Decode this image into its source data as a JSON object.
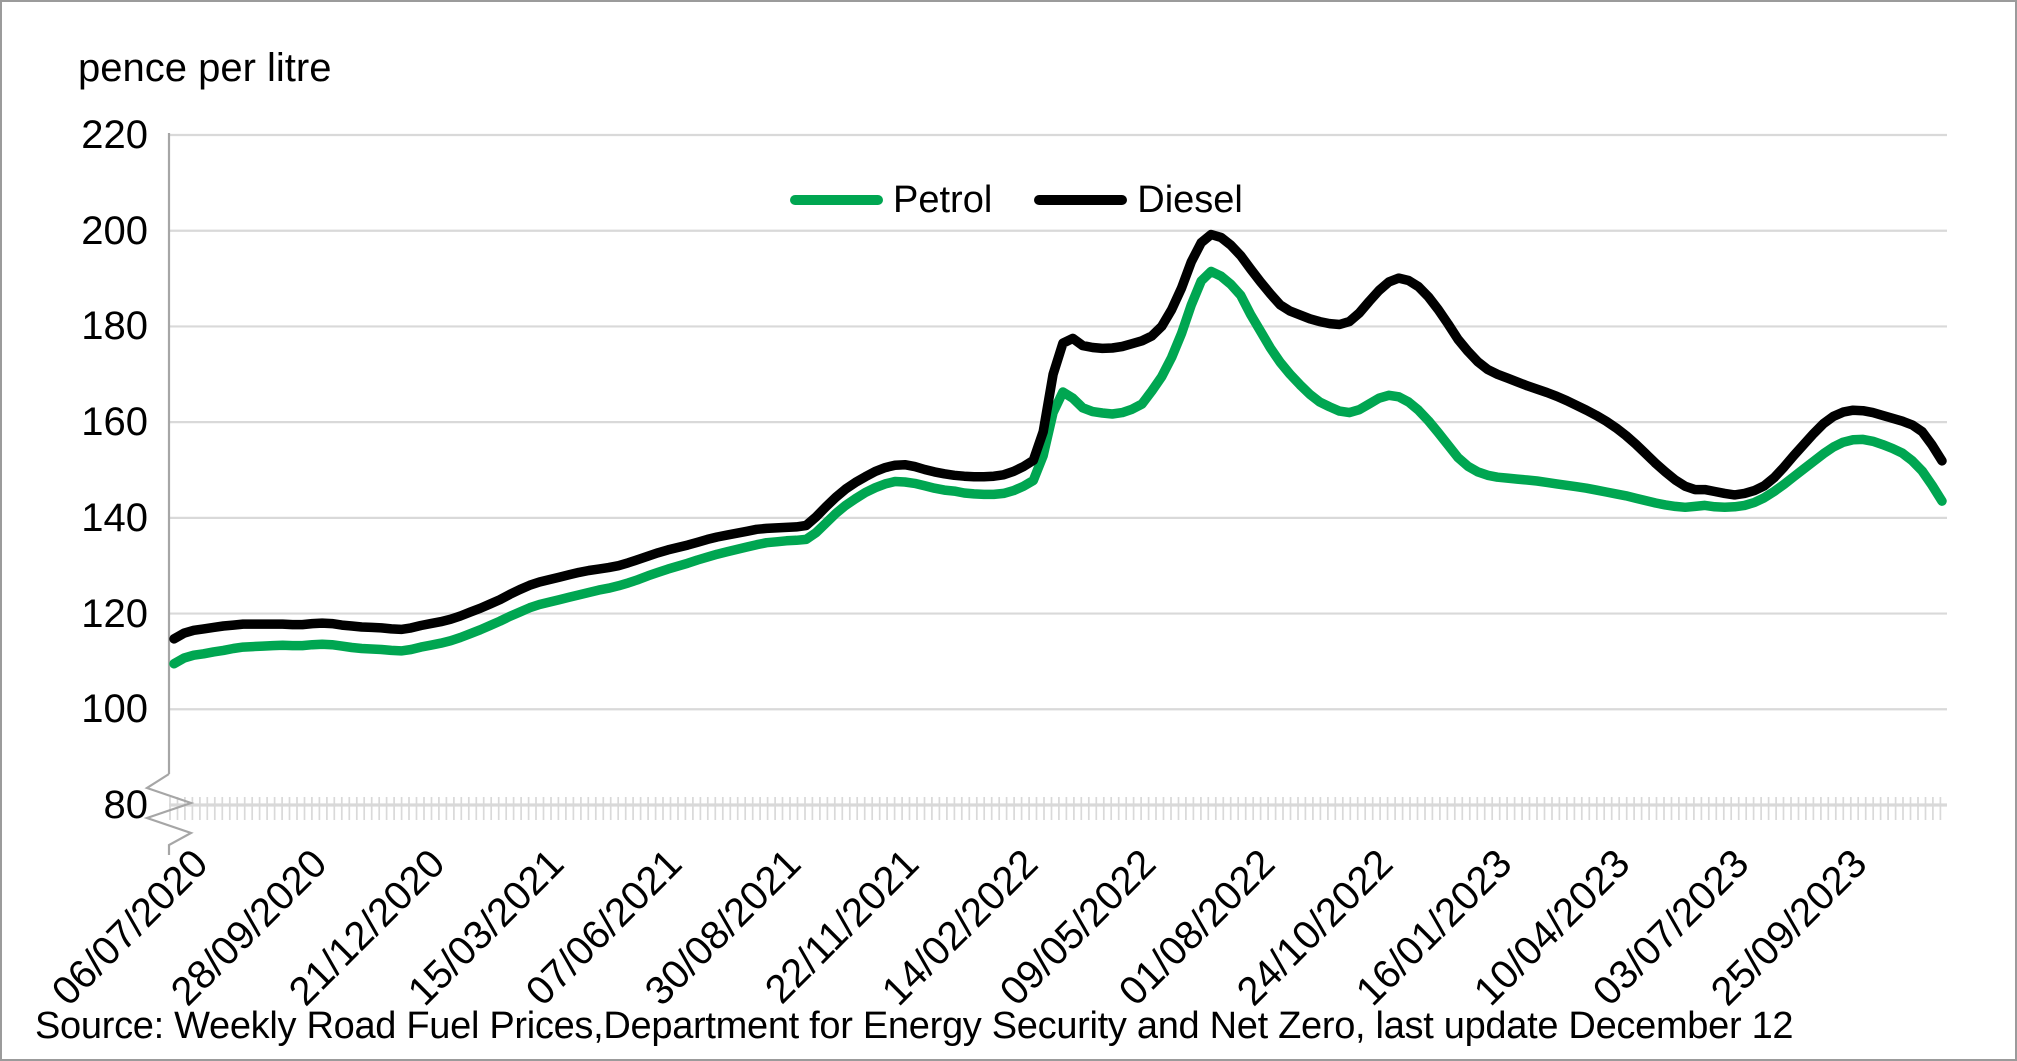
{
  "chart_title": "pence per litre",
  "source_note": "Source: Weekly Road Fuel Prices,Department for Energy Security and Net Zero, last update December 12",
  "legend": {
    "items": [
      {
        "label": "Petrol",
        "color": "#00A651"
      },
      {
        "label": "Diesel",
        "color": "#000000"
      }
    ]
  },
  "y_axis": {
    "tick_labels": [
      "220",
      "200",
      "180",
      "160",
      "140",
      "120",
      "100",
      "80"
    ],
    "has_axis_break_below": 80
  },
  "colors": {
    "grid": "#d9d9d9",
    "axis": "#a6a6a6",
    "text": "#000000",
    "border": "#9b9b9b",
    "petrol": "#00A651",
    "diesel": "#000000"
  },
  "chart_data": {
    "type": "line",
    "title": "pence per litre",
    "xlabel": "",
    "ylabel": "pence per litre",
    "ylim": [
      80,
      220
    ],
    "y_ticks": [
      220,
      200,
      180,
      160,
      140,
      120,
      100,
      80
    ],
    "grid": true,
    "legend_position": "top-center",
    "x_unit": "week",
    "x_start_date": "06/07/2020",
    "x_end_date": "11/12/2023",
    "x_label_interval_weeks": 12,
    "x_tick_labels": [
      "06/07/2020",
      "28/09/2020",
      "21/12/2020",
      "15/03/2021",
      "07/06/2021",
      "30/08/2021",
      "22/11/2021",
      "14/02/2022",
      "09/05/2022",
      "01/08/2022",
      "24/10/2022",
      "16/01/2023",
      "10/04/2023",
      "03/07/2023",
      "25/09/2023"
    ],
    "series": [
      {
        "name": "Petrol",
        "color": "#00A651",
        "values": [
          109.5,
          110.7,
          111.3,
          111.6,
          112.0,
          112.3,
          112.7,
          113.0,
          113.1,
          113.2,
          113.3,
          113.4,
          113.3,
          113.3,
          113.5,
          113.6,
          113.5,
          113.2,
          112.9,
          112.7,
          112.6,
          112.5,
          112.3,
          112.2,
          112.5,
          113.0,
          113.4,
          113.8,
          114.3,
          115.0,
          115.8,
          116.6,
          117.5,
          118.4,
          119.4,
          120.3,
          121.2,
          121.9,
          122.4,
          122.9,
          123.4,
          123.9,
          124.4,
          124.9,
          125.3,
          125.8,
          126.4,
          127.1,
          127.9,
          128.6,
          129.3,
          129.9,
          130.5,
          131.2,
          131.8,
          132.4,
          132.9,
          133.4,
          133.9,
          134.4,
          134.8,
          135.0,
          135.2,
          135.3,
          135.5,
          136.9,
          138.9,
          140.9,
          142.6,
          144.0,
          145.3,
          146.3,
          147.1,
          147.6,
          147.5,
          147.2,
          146.7,
          146.2,
          145.8,
          145.6,
          145.2,
          145.0,
          144.9,
          144.9,
          145.1,
          145.7,
          146.6,
          147.8,
          153.0,
          162.0,
          166.3,
          165.0,
          163.0,
          162.2,
          161.9,
          161.7,
          162.0,
          162.7,
          163.8,
          166.5,
          169.5,
          173.5,
          178.5,
          184.5,
          189.5,
          191.5,
          190.5,
          188.8,
          186.5,
          182.5,
          179.0,
          175.5,
          172.5,
          170.0,
          167.8,
          165.8,
          164.2,
          163.2,
          162.3,
          162.0,
          162.6,
          163.8,
          165.0,
          165.6,
          165.3,
          164.2,
          162.5,
          160.3,
          157.8,
          155.2,
          152.6,
          150.8,
          149.6,
          148.9,
          148.5,
          148.3,
          148.1,
          147.9,
          147.7,
          147.4,
          147.1,
          146.8,
          146.5,
          146.2,
          145.8,
          145.4,
          145.0,
          144.6,
          144.1,
          143.6,
          143.1,
          142.7,
          142.4,
          142.2,
          142.4,
          142.6,
          142.3,
          142.2,
          142.3,
          142.6,
          143.2,
          144.2,
          145.5,
          147.0,
          148.6,
          150.2,
          151.8,
          153.4,
          154.8,
          155.8,
          156.3,
          156.4,
          156.0,
          155.3,
          154.5,
          153.5,
          151.9,
          149.8,
          146.8,
          143.5
        ]
      },
      {
        "name": "Diesel",
        "color": "#000000",
        "values": [
          114.7,
          115.9,
          116.5,
          116.8,
          117.1,
          117.4,
          117.6,
          117.8,
          117.8,
          117.8,
          117.8,
          117.8,
          117.7,
          117.7,
          117.9,
          118.0,
          117.9,
          117.6,
          117.4,
          117.2,
          117.1,
          117.0,
          116.8,
          116.7,
          117.0,
          117.5,
          117.9,
          118.3,
          118.8,
          119.5,
          120.3,
          121.1,
          122.0,
          122.9,
          124.0,
          125.0,
          125.9,
          126.6,
          127.1,
          127.6,
          128.1,
          128.6,
          129.0,
          129.3,
          129.6,
          130.0,
          130.6,
          131.3,
          132.0,
          132.7,
          133.3,
          133.8,
          134.3,
          134.9,
          135.5,
          136.0,
          136.4,
          136.8,
          137.2,
          137.6,
          137.8,
          137.9,
          138.0,
          138.1,
          138.4,
          140.2,
          142.3,
          144.3,
          146.0,
          147.4,
          148.6,
          149.7,
          150.5,
          151.0,
          151.1,
          150.7,
          150.1,
          149.6,
          149.2,
          148.9,
          148.7,
          148.6,
          148.6,
          148.7,
          149.0,
          149.7,
          150.7,
          152.0,
          158.0,
          170.0,
          176.5,
          177.5,
          176.0,
          175.6,
          175.4,
          175.5,
          175.8,
          176.4,
          177.0,
          178.0,
          180.0,
          183.5,
          188.0,
          193.5,
          197.5,
          199.2,
          198.6,
          197.0,
          194.8,
          192.0,
          189.3,
          186.8,
          184.5,
          183.2,
          182.4,
          181.6,
          181.0,
          180.6,
          180.4,
          181.0,
          182.8,
          185.2,
          187.5,
          189.3,
          190.1,
          189.6,
          188.3,
          186.2,
          183.5,
          180.5,
          177.3,
          174.8,
          172.6,
          171.0,
          170.0,
          169.2,
          168.4,
          167.6,
          166.9,
          166.2,
          165.4,
          164.5,
          163.5,
          162.5,
          161.4,
          160.2,
          158.8,
          157.2,
          155.4,
          153.4,
          151.4,
          149.6,
          147.9,
          146.6,
          145.9,
          145.9,
          145.5,
          145.1,
          144.8,
          145.1,
          145.7,
          146.7,
          148.4,
          150.6,
          153.0,
          155.3,
          157.6,
          159.7,
          161.2,
          162.1,
          162.5,
          162.4,
          162.0,
          161.4,
          160.8,
          160.2,
          159.4,
          158.0,
          155.2,
          151.9
        ]
      }
    ]
  }
}
